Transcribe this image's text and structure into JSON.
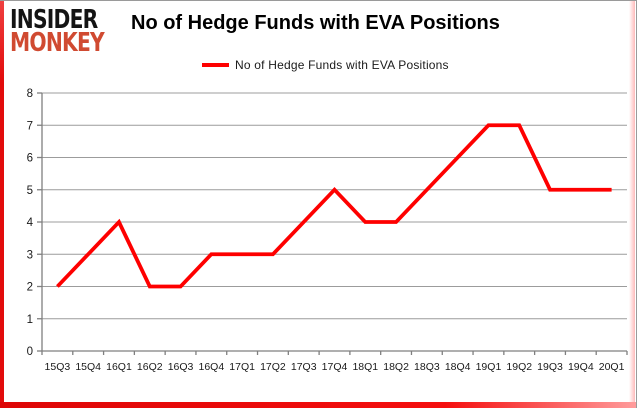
{
  "logo": {
    "line1": "INSIDER",
    "line2": "MONKEY"
  },
  "header": {
    "title": "No of Hedge Funds with EVA Positions"
  },
  "legend": {
    "label": "No of Hedge Funds with EVA Positions"
  },
  "colors": {
    "series": "#fe0000",
    "grid": "#9c9c9c",
    "axis": "#7f7f7f",
    "tick_label": "#1a1a1a",
    "logo_red": "#d04a31",
    "frame_red": "#e20b0b"
  },
  "chart_data": {
    "type": "line",
    "title": "No of Hedge Funds with EVA Positions",
    "categories": [
      "15Q3",
      "15Q4",
      "16Q1",
      "16Q2",
      "16Q3",
      "16Q4",
      "17Q1",
      "17Q2",
      "17Q3",
      "17Q4",
      "18Q1",
      "18Q2",
      "18Q3",
      "18Q4",
      "19Q1",
      "19Q2",
      "19Q3",
      "19Q4",
      "20Q1"
    ],
    "series": [
      {
        "name": "No of Hedge Funds with EVA Positions",
        "values": [
          2,
          3,
          4,
          2,
          2,
          3,
          3,
          3,
          4,
          5,
          4,
          4,
          5,
          6,
          7,
          7,
          5,
          5,
          5
        ]
      }
    ],
    "xlabel": "",
    "ylabel": "",
    "ylim": [
      0,
      8
    ],
    "ytick_step": 1,
    "grid": true,
    "legend_position": "top"
  }
}
